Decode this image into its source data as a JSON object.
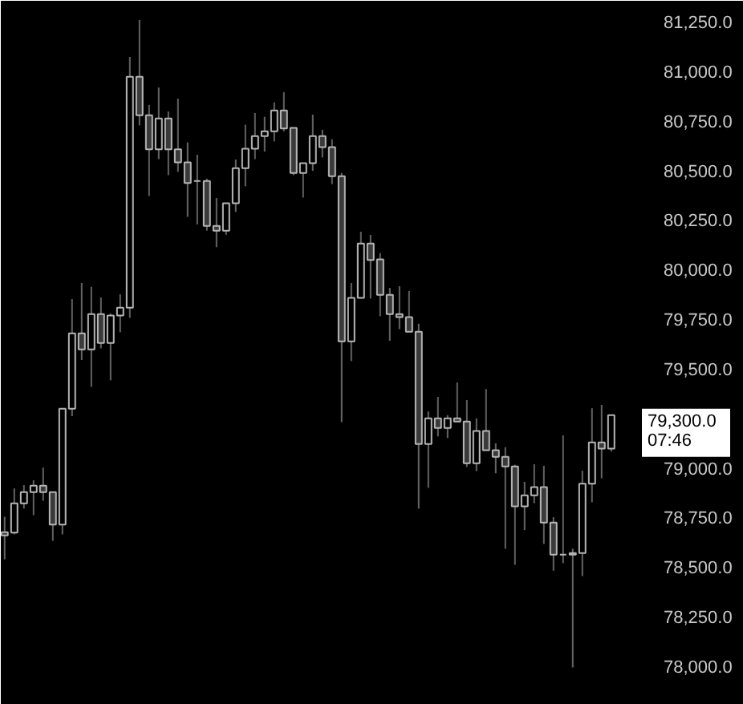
{
  "chart_data": {
    "type": "candlestick",
    "categories": [
      null,
      null,
      null,
      null,
      null,
      null,
      null,
      null,
      null,
      null,
      null,
      null,
      null,
      null,
      null,
      null,
      null,
      null,
      null,
      null,
      null,
      null,
      null,
      null,
      null,
      null,
      null,
      null,
      null,
      null,
      null,
      null,
      null,
      null,
      null,
      null,
      null,
      null,
      null,
      null,
      null,
      null,
      null,
      null,
      null,
      null,
      null,
      null,
      null,
      null,
      null,
      null,
      null,
      null,
      null,
      null,
      null,
      null,
      null,
      null,
      null,
      null,
      null,
      null
    ],
    "ohlc": [
      [
        78676,
        78754,
        78539,
        78660
      ],
      [
        78674,
        78897,
        78665,
        78822
      ],
      [
        78822,
        78913,
        78795,
        78878
      ],
      [
        78878,
        78938,
        78762,
        78911
      ],
      [
        78911,
        79002,
        78835,
        78878
      ],
      [
        78878,
        78878,
        78633,
        78714
      ],
      [
        78714,
        79299,
        78665,
        79299
      ],
      [
        79299,
        79851,
        79261,
        79679
      ],
      [
        79679,
        79932,
        79544,
        79598
      ],
      [
        79598,
        79913,
        79409,
        79776
      ],
      [
        79776,
        79859,
        79603,
        79630
      ],
      [
        79630,
        79778,
        79442,
        79768
      ],
      [
        79768,
        79875,
        79684,
        79808
      ],
      [
        79808,
        81072,
        79757,
        80972
      ],
      [
        80972,
        81258,
        80727,
        80778
      ],
      [
        80778,
        80830,
        80371,
        80606
      ],
      [
        80606,
        80918,
        80557,
        80762
      ],
      [
        80762,
        80797,
        80476,
        80606
      ],
      [
        80606,
        80862,
        80493,
        80541
      ],
      [
        80541,
        80641,
        80266,
        80436
      ],
      [
        80447,
        80579,
        80228,
        80447
      ],
      [
        80447,
        80458,
        80196,
        80220
      ],
      [
        80220,
        80360,
        80113,
        80196
      ],
      [
        80196,
        80334,
        80175,
        80334
      ],
      [
        80334,
        80555,
        80291,
        80511
      ],
      [
        80511,
        80730,
        80420,
        80609
      ],
      [
        80609,
        80789,
        80557,
        80673
      ],
      [
        80673,
        80770,
        80595,
        80697
      ],
      [
        80697,
        80843,
        80646,
        80802
      ],
      [
        80802,
        80894,
        80697,
        80711
      ],
      [
        80714,
        80714,
        80476,
        80487
      ],
      [
        80487,
        80536,
        80363,
        80536
      ],
      [
        80536,
        80781,
        80498,
        80673
      ],
      [
        80673,
        80705,
        80565,
        80617
      ],
      [
        80617,
        80657,
        80431,
        80471
      ],
      [
        80471,
        80487,
        79231,
        79638
      ],
      [
        79638,
        79932,
        79539,
        79857
      ],
      [
        79857,
        80191,
        79854,
        80131
      ],
      [
        80131,
        80175,
        79854,
        80048
      ],
      [
        80051,
        80083,
        79765,
        79873
      ],
      [
        79873,
        79908,
        79641,
        79776
      ],
      [
        79776,
        79916,
        79700,
        79760
      ],
      [
        79760,
        79892,
        79687,
        79687
      ],
      [
        79687,
        79727,
        78795,
        79121
      ],
      [
        79121,
        79285,
        78900,
        79250
      ],
      [
        79250,
        79358,
        79159,
        79202
      ],
      [
        79202,
        79266,
        79151,
        79250
      ],
      [
        79250,
        79431,
        79234,
        79234
      ],
      [
        79234,
        79342,
        79005,
        79024
      ],
      [
        79024,
        79250,
        78984,
        79186
      ],
      [
        79186,
        79398,
        79089,
        79089
      ],
      [
        79089,
        79124,
        78973,
        79056
      ],
      [
        79056,
        79105,
        78593,
        79008
      ],
      [
        79008,
        79016,
        78512,
        78806
      ],
      [
        78806,
        78930,
        78687,
        78862
      ],
      [
        78862,
        79019,
        78822,
        78903
      ],
      [
        78903,
        79011,
        78617,
        78725
      ],
      [
        78725,
        78752,
        78482,
        78563
      ],
      [
        78563,
        79164,
        78520,
        78563
      ],
      [
        78563,
        78593,
        77994,
        78571
      ],
      [
        78571,
        78986,
        78455,
        78921
      ],
      [
        78921,
        79301,
        78827,
        79129
      ],
      [
        79129,
        79318,
        78948,
        79097
      ],
      [
        79097,
        79266,
        79083,
        79266
      ]
    ],
    "color": "#b4b4b4",
    "ylim": [
      77806,
      81355
    ],
    "yticks": [
      {
        "value": 78000,
        "label": "78,000.0"
      },
      {
        "value": 78250,
        "label": "78,250.0"
      },
      {
        "value": 78500,
        "label": "78,500.0"
      },
      {
        "value": 78750,
        "label": "78,750.0"
      },
      {
        "value": 79000,
        "label": "79,000.0"
      },
      {
        "value": 79500,
        "label": "79,500.0"
      },
      {
        "value": 79750,
        "label": "79,750.0"
      },
      {
        "value": 80000,
        "label": "80,000.0"
      },
      {
        "value": 80250,
        "label": "80,250.0"
      },
      {
        "value": 80500,
        "label": "80,500.0"
      },
      {
        "value": 80750,
        "label": "80,750.0"
      },
      {
        "value": 81000,
        "label": "81,000.0"
      },
      {
        "value": 81250,
        "label": "81,250.0"
      }
    ],
    "tick_labels": "y",
    "grid": false,
    "annotations": [
      "79,300.0",
      "07:46"
    ]
  }
}
